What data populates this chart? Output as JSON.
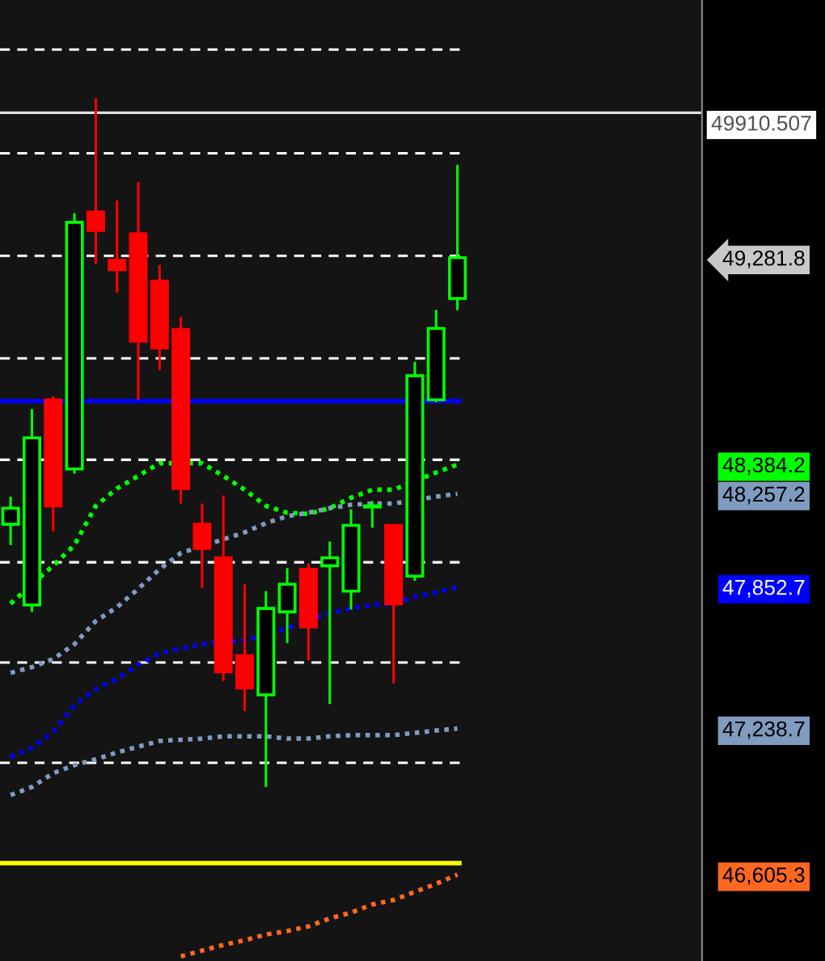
{
  "chart_data": {
    "type": "candlestick",
    "categories": [
      null,
      null,
      null,
      null,
      null,
      null,
      null,
      null,
      null,
      null,
      null,
      null,
      null,
      null,
      null,
      null,
      null,
      null,
      null,
      null,
      null,
      null,
      null,
      null,
      null,
      null,
      null,
      null,
      null,
      null,
      null,
      null,
      null
    ],
    "ohlc": [
      [
        48125,
        48245,
        48035,
        48195
      ],
      [
        47775,
        48625,
        47745,
        48500
      ],
      [
        48665,
        48680,
        48095,
        48205
      ],
      [
        48365,
        49475,
        48345,
        49435
      ],
      [
        49480,
        49975,
        49255,
        49400
      ],
      [
        49270,
        49530,
        49130,
        49230
      ],
      [
        49385,
        49610,
        48665,
        48920
      ],
      [
        49180,
        49250,
        48795,
        48890
      ],
      [
        48970,
        49025,
        48215,
        48280
      ],
      [
        48125,
        48215,
        47850,
        48020
      ],
      [
        47980,
        48250,
        47445,
        47485
      ],
      [
        47555,
        47865,
        47315,
        47415
      ],
      [
        47385,
        47835,
        46985,
        47760
      ],
      [
        47745,
        47935,
        47610,
        47865
      ],
      [
        47930,
        47955,
        47535,
        47680
      ],
      [
        47945,
        48050,
        47345,
        47980
      ],
      [
        47835,
        48190,
        47755,
        48120
      ],
      [
        48200,
        48225,
        48110,
        48205
      ],
      [
        48120,
        48120,
        47435,
        47780
      ],
      [
        47900,
        48830,
        47880,
        48770
      ],
      [
        48665,
        49055,
        48655,
        48975
      ],
      [
        49105,
        49685,
        49055,
        49281.8
      ],
      null,
      null,
      null,
      null,
      null,
      null,
      null,
      null,
      null,
      null,
      null
    ],
    "colors": [
      "#00ff00",
      "#00ff00",
      "#ff0000",
      "#00ff00",
      "#ff0000",
      "#ff0000",
      "#ff0000",
      "#ff0000",
      "#ff0000",
      "#ff0000",
      "#ff0000",
      "#ff0000",
      "#00ff00",
      "#00ff00",
      "#ff0000",
      "#00ff00",
      "#00ff00",
      "#00ff00",
      "#ff0000",
      "#00ff00",
      "#00ff00",
      "#00ff00",
      null,
      null,
      null,
      null,
      null,
      null,
      null,
      null,
      null,
      null,
      null
    ],
    "series": [
      {
        "type": "line",
        "color": "#00ff00",
        "values": [
          47780,
          47865,
          47945,
          48035,
          48205,
          48280,
          48335,
          48390,
          null,
          48390,
          48335,
          48275,
          48205,
          48175,
          48170,
          48195,
          48240,
          48275,
          48275,
          null,
          48350,
          48384.2,
          null,
          null,
          null,
          null,
          null,
          null,
          null,
          null,
          null,
          null,
          null
        ]
      },
      {
        "type": "line",
        "color": "#7f9bc0",
        "values": [
          47480,
          47505,
          47540,
          47605,
          47705,
          47765,
          47845,
          47930,
          48000,
          null,
          48060,
          48090,
          48130,
          48160,
          48175,
          48195,
          48210,
          48215,
          48215,
          null,
          48245,
          48257.2,
          null,
          null,
          null,
          null,
          null,
          null,
          null,
          null,
          null,
          null,
          null
        ]
      },
      {
        "type": "line",
        "color": "#0000ff",
        "values": [
          47115,
          47155,
          47225,
          47340,
          47410,
          47455,
          47515,
          47565,
          47585,
          47605,
          null,
          47620,
          null,
          47675,
          null,
          47740,
          47760,
          47775,
          47780,
          47810,
          47830,
          47852.7,
          null,
          null,
          null,
          null,
          null,
          null,
          null,
          null,
          null,
          null,
          null
        ]
      },
      {
        "type": "line",
        "color": "#7f9bc0",
        "values": [
          46950,
          46985,
          47045,
          47080,
          47105,
          47135,
          47160,
          47185,
          47190,
          47195,
          47205,
          47205,
          47205,
          47195,
          47195,
          47205,
          47210,
          47210,
          47210,
          47220,
          47230,
          47238.7,
          null,
          null,
          null,
          null,
          null,
          null,
          null,
          null,
          null,
          null,
          null
        ]
      },
      {
        "type": "line",
        "color": "#ff6820",
        "values": [
          null,
          null,
          null,
          null,
          null,
          null,
          null,
          null,
          46250,
          46275,
          46300,
          46320,
          46345,
          46360,
          46380,
          46415,
          46440,
          46475,
          46495,
          46530,
          46565,
          46605.3,
          null,
          null,
          null,
          null,
          null,
          null,
          null,
          null,
          null,
          null,
          null
        ]
      }
    ],
    "line_style": "dotted",
    "ylim": [
      46230,
      50400
    ],
    "yticks": [
      {
        "value": 49281.8,
        "label": "49,281.8"
      },
      {
        "value": 48384.2,
        "label": "48,384.2"
      },
      {
        "value": 48257.2,
        "label": "48,257.2"
      },
      {
        "value": 47852.7,
        "label": "47,852.7"
      },
      {
        "value": 47238.7,
        "label": "47,238.7"
      },
      {
        "value": 46605.3,
        "label": "46,605.3"
      }
    ],
    "tick_labels": "y",
    "ref_lines": [
      {
        "axis": "y",
        "value": 50185,
        "color": "#ffffff",
        "line_style": "dashed"
      },
      {
        "axis": "y",
        "value": 49735,
        "color": "#ffffff",
        "line_style": "dashed"
      },
      {
        "axis": "y",
        "value": 49290,
        "color": "#ffffff",
        "line_style": "dashed"
      },
      {
        "axis": "y",
        "value": 48845,
        "color": "#ffffff",
        "line_style": "dashed"
      },
      {
        "axis": "y",
        "value": 48405,
        "color": "#ffffff",
        "line_style": "dashed"
      },
      {
        "axis": "y",
        "value": 47960,
        "color": "#ffffff",
        "line_style": "dashed"
      },
      {
        "axis": "y",
        "value": 47525,
        "color": "#ffffff",
        "line_style": "dashed"
      },
      {
        "axis": "y",
        "value": 47090,
        "color": "#ffffff",
        "line_style": "dashed"
      },
      {
        "axis": "y",
        "value": 48660,
        "color": "#0000ff",
        "line_style": "solid"
      },
      {
        "axis": "y",
        "value": 46655,
        "color": "#ffff00",
        "line_style": "solid"
      },
      {
        "axis": "y",
        "value": 49910.507,
        "label": "49910.507",
        "color": "#e0e0e0",
        "line_style": "solid"
      }
    ]
  }
}
